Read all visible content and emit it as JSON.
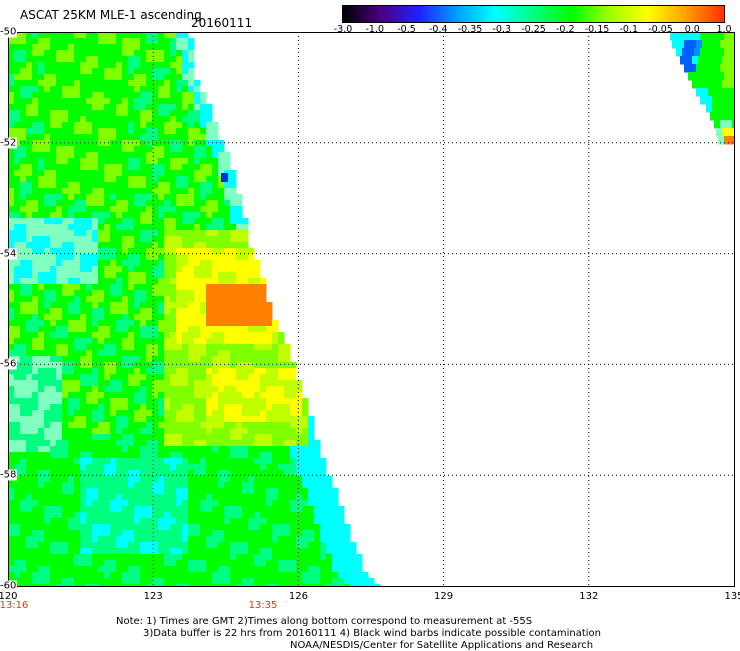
{
  "header": {
    "title": "ASCAT 25KM MLE-1 ascending",
    "date": "20160111"
  },
  "colorbar": {
    "labels": [
      "-3.0",
      "-1.0",
      "-0.5",
      "-0.4",
      "-0.35",
      "-0.3",
      "-0.25",
      "-0.2",
      "-0.15",
      "-0.1",
      "-0.05",
      "0.0",
      "1.0"
    ],
    "colors": [
      "#000000",
      "#4b0082",
      "#2020ff",
      "#00a0ff",
      "#00ffff",
      "#00ff80",
      "#00ff00",
      "#a0ff00",
      "#ffff00",
      "#ffa000",
      "#ff3000"
    ]
  },
  "map": {
    "x_axis": {
      "ticks": [
        "120",
        "123",
        "126",
        "129",
        "132",
        "135"
      ],
      "range": [
        120,
        135
      ]
    },
    "y_axis": {
      "ticks": [
        "-50",
        "-52",
        "-54",
        "-56",
        "-58",
        "-60"
      ],
      "range": [
        -60,
        -50
      ]
    },
    "times": {
      "start": "13:16",
      "mid": "13:35"
    },
    "palette": {
      "cyan": "#00ffff",
      "light-cyan": "#80ffc0",
      "aqua-green": "#00ff80",
      "green": "#00ff00",
      "lime": "#80ff00",
      "yellow-green": "#c0ff00",
      "yellow": "#ffff00",
      "orange": "#ff8000",
      "blue": "#0060ff",
      "mid-blue": "#0090ff",
      "dark-blue": "#0030e0"
    }
  },
  "notes": {
    "line1": "Note: 1) Times are GMT 2)Times along bottom correspond to measurement at -55S",
    "line2": "3)Data buffer is 22 hrs from 20160111 4) Black wind barbs indicate possible contamination",
    "line3": "NOAA/NESDIS/Center for Satellite Applications and Research"
  }
}
